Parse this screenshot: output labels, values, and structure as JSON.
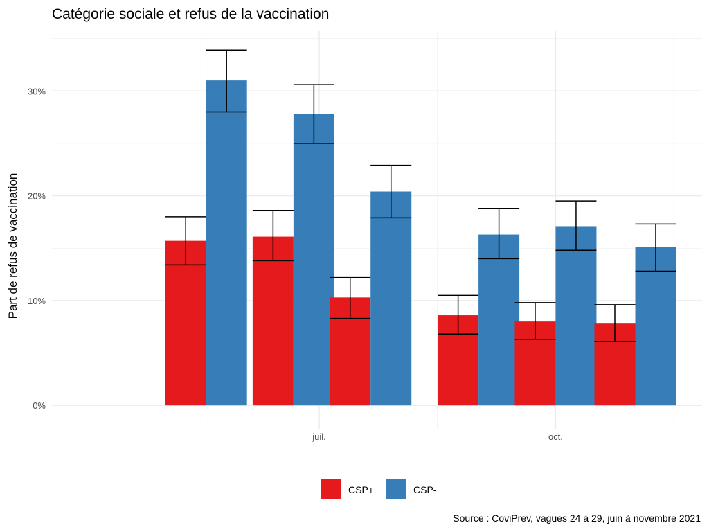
{
  "chart_data": {
    "type": "bar",
    "title": "Catégorie sociale et refus de la vaccination",
    "xlabel": "",
    "ylabel": "Part de refus de vaccination",
    "caption": "Source : CoviPrev, vagues 24 à 29, juin à novembre 2021",
    "x_dates": [
      "2021-05-18",
      "2021-06-21",
      "2021-07-21",
      "2021-09-01",
      "2021-10-01",
      "2021-11-01"
    ],
    "x_ticks": [
      {
        "date": "2021-07-01",
        "label": "juil."
      },
      {
        "date": "2021-10-01",
        "label": "oct."
      }
    ],
    "x_minor_grid": [
      "2021-05-16",
      "2021-08-16",
      "2021-11-16"
    ],
    "xlim": [
      "2021-03-19",
      "2021-11-27"
    ],
    "ylim": [
      -2.3,
      35.7
    ],
    "y_ticks": [
      {
        "value": 0,
        "label": "0%"
      },
      {
        "value": 10,
        "label": "10%"
      },
      {
        "value": 20,
        "label": "20%"
      },
      {
        "value": 30,
        "label": "30%"
      }
    ],
    "y_minor_grid": [
      5,
      15,
      25,
      35
    ],
    "grid": true,
    "legend_position": "bottom",
    "series": [
      {
        "name": "CSP+",
        "color": "#E41A1C",
        "values": [
          15.7,
          16.1,
          10.3,
          8.6,
          8.0,
          7.8
        ],
        "ci_low": [
          13.4,
          13.8,
          8.3,
          6.8,
          6.3,
          6.1
        ],
        "ci_high": [
          18.0,
          18.6,
          12.2,
          10.5,
          9.8,
          9.6
        ]
      },
      {
        "name": "CSP-",
        "color": "#377EB8",
        "values": [
          31.0,
          27.8,
          20.4,
          16.3,
          17.1,
          15.1
        ],
        "ci_low": [
          28.0,
          25.0,
          17.9,
          14.0,
          14.8,
          12.8
        ],
        "ci_high": [
          33.9,
          30.6,
          22.9,
          18.8,
          19.5,
          17.3
        ]
      }
    ]
  }
}
